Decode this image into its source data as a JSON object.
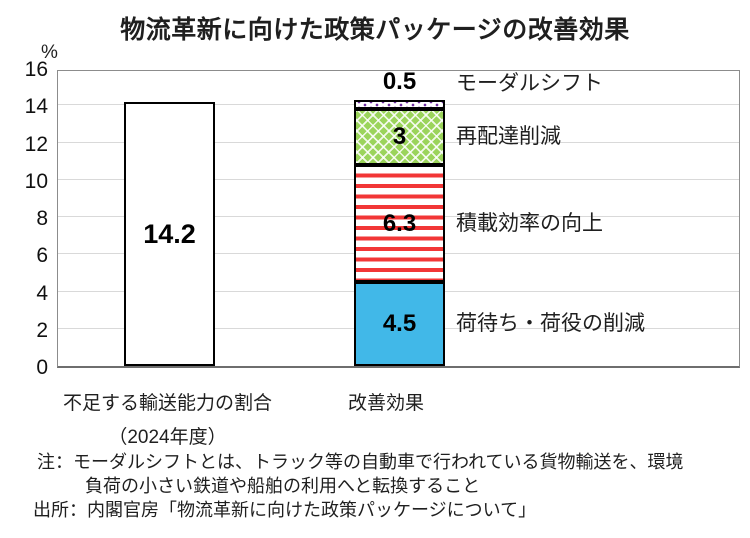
{
  "chart_data": {
    "type": "bar",
    "stacked": true,
    "title": "物流革新に向けた政策パッケージの改善効果",
    "unit": "%",
    "ylim": [
      0,
      16
    ],
    "yticks": [
      0,
      2,
      4,
      6,
      8,
      10,
      12,
      14,
      16
    ],
    "grid": true,
    "categories": [
      "不足する輸送能力の割合（2024年度）",
      "改善効果"
    ],
    "bars": [
      {
        "category": "不足する輸送能力の割合（2024年度）",
        "segments": [
          {
            "id": "shortage-ratio",
            "label": "",
            "value": 14.2,
            "value_text": "14.2",
            "pattern": "plain",
            "color": "#ffffff"
          }
        ]
      },
      {
        "category": "改善効果",
        "segments": [
          {
            "id": "cargo-wait-reduction",
            "label": "荷待ち・荷役の削減",
            "value": 4.5,
            "value_text": "4.5",
            "pattern": "solid",
            "color": "#41b8e8"
          },
          {
            "id": "load-efficiency",
            "label": "積載効率の向上",
            "value": 6.3,
            "value_text": "6.3",
            "pattern": "hstripe",
            "color": "#f23636"
          },
          {
            "id": "redelivery-reduction",
            "label": "再配達削減",
            "value": 3,
            "value_text": "3",
            "pattern": "diamond",
            "color": "#92d050"
          },
          {
            "id": "modal-shift",
            "label": "モーダルシフト",
            "value": 0.5,
            "value_text": "0.5",
            "pattern": "dots",
            "color": "#7030a0"
          }
        ]
      }
    ],
    "colors": {
      "axis": "#8c8c8c",
      "grid": "#d9d9d9"
    }
  },
  "xlabels": {
    "left_line1": "不足する輸送能力の割合",
    "left_line2": "（2024年度）",
    "right": "改善効果"
  },
  "notes": [
    "注：モーダルシフトとは、トラック等の自動車で行われている貨物輸送を、環境",
    "負荷の小さい鉄道や船舶の利用へと転換すること",
    "出所：内閣官房「物流革新に向けた政策パッケージについて」"
  ]
}
